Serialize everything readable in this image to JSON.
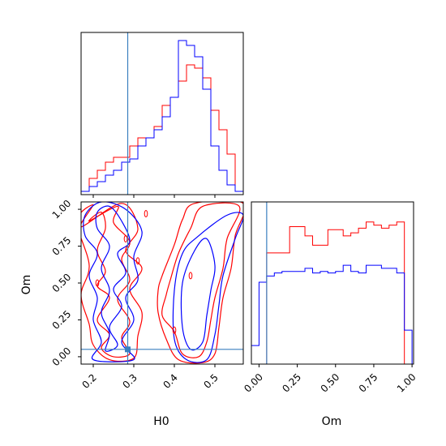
{
  "chart_data": [
    {
      "type": "histogram",
      "panel": "H0 marginal",
      "x_range": [
        0.17,
        0.57
      ],
      "bin_width": 0.02,
      "truth": 0.285,
      "series": [
        {
          "color": "#ff0000",
          "bin_edges": [
            0.17,
            0.19,
            0.21,
            0.23,
            0.25,
            0.27,
            0.29,
            0.31,
            0.33,
            0.35,
            0.37,
            0.39,
            0.41,
            0.43,
            0.45,
            0.47,
            0.49,
            0.51,
            0.53,
            0.55,
            0.57
          ],
          "counts": [
            2,
            10,
            15,
            20,
            23,
            23,
            30,
            35,
            35,
            42,
            55,
            60,
            70,
            80,
            78,
            72,
            52,
            40,
            25,
            2
          ]
        },
        {
          "color": "#0000ff",
          "bin_edges": [
            0.17,
            0.19,
            0.21,
            0.23,
            0.25,
            0.27,
            0.29,
            0.31,
            0.33,
            0.35,
            0.37,
            0.39,
            0.41,
            0.43,
            0.45,
            0.47,
            0.49,
            0.51,
            0.53,
            0.55,
            0.57
          ],
          "counts": [
            2,
            5,
            8,
            12,
            15,
            20,
            22,
            30,
            35,
            40,
            48,
            60,
            95,
            92,
            85,
            65,
            30,
            15,
            6,
            2
          ]
        }
      ]
    },
    {
      "type": "histogram",
      "panel": "Om marginal",
      "x_range": [
        -0.05,
        1.01
      ],
      "xlabel": "Om",
      "xticks": [
        "0.00",
        "0.25",
        "0.50",
        "0.75",
        "1.00"
      ],
      "truth": 0.05,
      "series": [
        {
          "color": "#ff0000",
          "bin_edges": [
            -0.05,
            0.0,
            0.05,
            0.1,
            0.15,
            0.2,
            0.25,
            0.3,
            0.35,
            0.4,
            0.45,
            0.5,
            0.55,
            0.6,
            0.65,
            0.7,
            0.75,
            0.8,
            0.85,
            0.9,
            0.95,
            1.0
          ],
          "counts": [
            0,
            0,
            72,
            72,
            72,
            89,
            89,
            83,
            77,
            77,
            87,
            87,
            83,
            85,
            88,
            92,
            90,
            88,
            90,
            92,
            0
          ]
        },
        {
          "color": "#0000ff",
          "bin_edges": [
            -0.05,
            0.0,
            0.05,
            0.1,
            0.15,
            0.2,
            0.25,
            0.3,
            0.35,
            0.4,
            0.45,
            0.5,
            0.55,
            0.6,
            0.65,
            0.7,
            0.75,
            0.8,
            0.85,
            0.9,
            0.95,
            1.0
          ],
          "counts": [
            12,
            53,
            57,
            59,
            60,
            60,
            60,
            62,
            59,
            60,
            59,
            60,
            64,
            60,
            59,
            64,
            64,
            62,
            62,
            59,
            22
          ]
        }
      ]
    },
    {
      "type": "contour",
      "panel": "H0 vs Om",
      "xlabel": "H0",
      "ylabel": "Om",
      "x_range": [
        0.17,
        0.57
      ],
      "y_range": [
        -0.05,
        1.05
      ],
      "xticks": [
        "0.2",
        "0.3",
        "0.4",
        "0.5"
      ],
      "yticks": [
        "0.00",
        "0.25",
        "0.50",
        "0.75",
        "1.00"
      ],
      "truth": [
        0.285,
        0.05
      ],
      "series": [
        {
          "color": "#ff0000",
          "contours": [
            [
              [
                0.19,
                0.92
              ],
              [
                0.22,
                0.98
              ],
              [
                0.23,
                0.87
              ],
              [
                0.21,
                0.72
              ],
              [
                0.23,
                0.58
              ],
              [
                0.21,
                0.48
              ],
              [
                0.24,
                0.4
              ],
              [
                0.21,
                0.25
              ],
              [
                0.24,
                0.15
              ],
              [
                0.22,
                0.06
              ],
              [
                0.25,
                0.0
              ],
              [
                0.29,
                0.02
              ],
              [
                0.27,
                0.13
              ],
              [
                0.29,
                0.24
              ],
              [
                0.26,
                0.39
              ],
              [
                0.29,
                0.52
              ],
              [
                0.27,
                0.66
              ],
              [
                0.29,
                0.78
              ],
              [
                0.25,
                0.91
              ],
              [
                0.26,
                1.02
              ]
            ],
            [
              [
                0.39,
                0.52
              ],
              [
                0.41,
                0.7
              ],
              [
                0.44,
                0.87
              ],
              [
                0.47,
                1.02
              ],
              [
                0.56,
                1.02
              ],
              [
                0.53,
                0.8
              ],
              [
                0.52,
                0.6
              ],
              [
                0.5,
                0.4
              ],
              [
                0.49,
                0.25
              ],
              [
                0.48,
                0.1
              ],
              [
                0.46,
                0.0
              ],
              [
                0.42,
                0.02
              ],
              [
                0.4,
                0.17
              ],
              [
                0.37,
                0.28
              ],
              [
                0.38,
                0.42
              ]
            ],
            [
              [
                0.17,
                0.88
              ],
              [
                0.2,
                1.03
              ],
              [
                0.16,
                0.92
              ],
              [
                0.19,
                0.62
              ],
              [
                0.17,
                0.42
              ],
              [
                0.19,
                0.22
              ],
              [
                0.2,
                0.08
              ],
              [
                0.24,
                -0.02
              ],
              [
                0.3,
                -0.01
              ],
              [
                0.31,
                0.14
              ],
              [
                0.32,
                0.3
              ],
              [
                0.29,
                0.46
              ],
              [
                0.32,
                0.6
              ],
              [
                0.28,
                0.72
              ],
              [
                0.31,
                0.87
              ],
              [
                0.27,
                1.04
              ]
            ],
            [
              [
                0.37,
                0.55
              ],
              [
                0.4,
                0.76
              ],
              [
                0.42,
                0.93
              ],
              [
                0.45,
                1.04
              ],
              [
                0.57,
                1.04
              ],
              [
                0.55,
                0.82
              ],
              [
                0.54,
                0.6
              ],
              [
                0.52,
                0.4
              ],
              [
                0.51,
                0.2
              ],
              [
                0.5,
                0.02
              ],
              [
                0.47,
                -0.04
              ],
              [
                0.41,
                -0.02
              ],
              [
                0.38,
                0.12
              ],
              [
                0.36,
                0.3
              ],
              [
                0.36,
                0.45
              ]
            ]
          ]
        },
        {
          "color": "#0000ff",
          "contours": [
            [
              [
                0.21,
                0.98
              ],
              [
                0.24,
                1.02
              ],
              [
                0.27,
                0.92
              ],
              [
                0.29,
                0.78
              ],
              [
                0.26,
                0.7
              ],
              [
                0.28,
                0.57
              ],
              [
                0.25,
                0.46
              ],
              [
                0.27,
                0.34
              ],
              [
                0.24,
                0.2
              ],
              [
                0.26,
                0.08
              ],
              [
                0.23,
                0.04
              ],
              [
                0.24,
                0.16
              ],
              [
                0.22,
                0.3
              ],
              [
                0.24,
                0.45
              ],
              [
                0.22,
                0.6
              ],
              [
                0.24,
                0.75
              ],
              [
                0.21,
                0.87
              ]
            ],
            [
              [
                0.42,
                0.2
              ],
              [
                0.42,
                0.5
              ],
              [
                0.45,
                0.72
              ],
              [
                0.48,
                0.8
              ],
              [
                0.5,
                0.62
              ],
              [
                0.49,
                0.45
              ],
              [
                0.48,
                0.28
              ],
              [
                0.47,
                0.1
              ],
              [
                0.44,
                0.05
              ]
            ],
            [
              [
                0.18,
                0.96
              ],
              [
                0.22,
                1.05
              ],
              [
                0.28,
                1.0
              ],
              [
                0.32,
                0.85
              ],
              [
                0.3,
                0.68
              ],
              [
                0.31,
                0.52
              ],
              [
                0.28,
                0.4
              ],
              [
                0.3,
                0.25
              ],
              [
                0.27,
                0.1
              ],
              [
                0.3,
                -0.02
              ],
              [
                0.2,
                -0.02
              ],
              [
                0.22,
                0.1
              ],
              [
                0.2,
                0.25
              ],
              [
                0.21,
                0.4
              ],
              [
                0.19,
                0.55
              ],
              [
                0.21,
                0.7
              ],
              [
                0.18,
                0.82
              ]
            ],
            [
              [
                0.4,
                0.12
              ],
              [
                0.4,
                0.45
              ],
              [
                0.42,
                0.7
              ],
              [
                0.46,
                0.82
              ],
              [
                0.53,
                0.96
              ],
              [
                0.57,
                0.96
              ],
              [
                0.55,
                0.8
              ],
              [
                0.52,
                0.55
              ],
              [
                0.51,
                0.35
              ],
              [
                0.5,
                0.15
              ],
              [
                0.48,
                -0.02
              ],
              [
                0.43,
                -0.02
              ]
            ]
          ]
        }
      ]
    }
  ]
}
